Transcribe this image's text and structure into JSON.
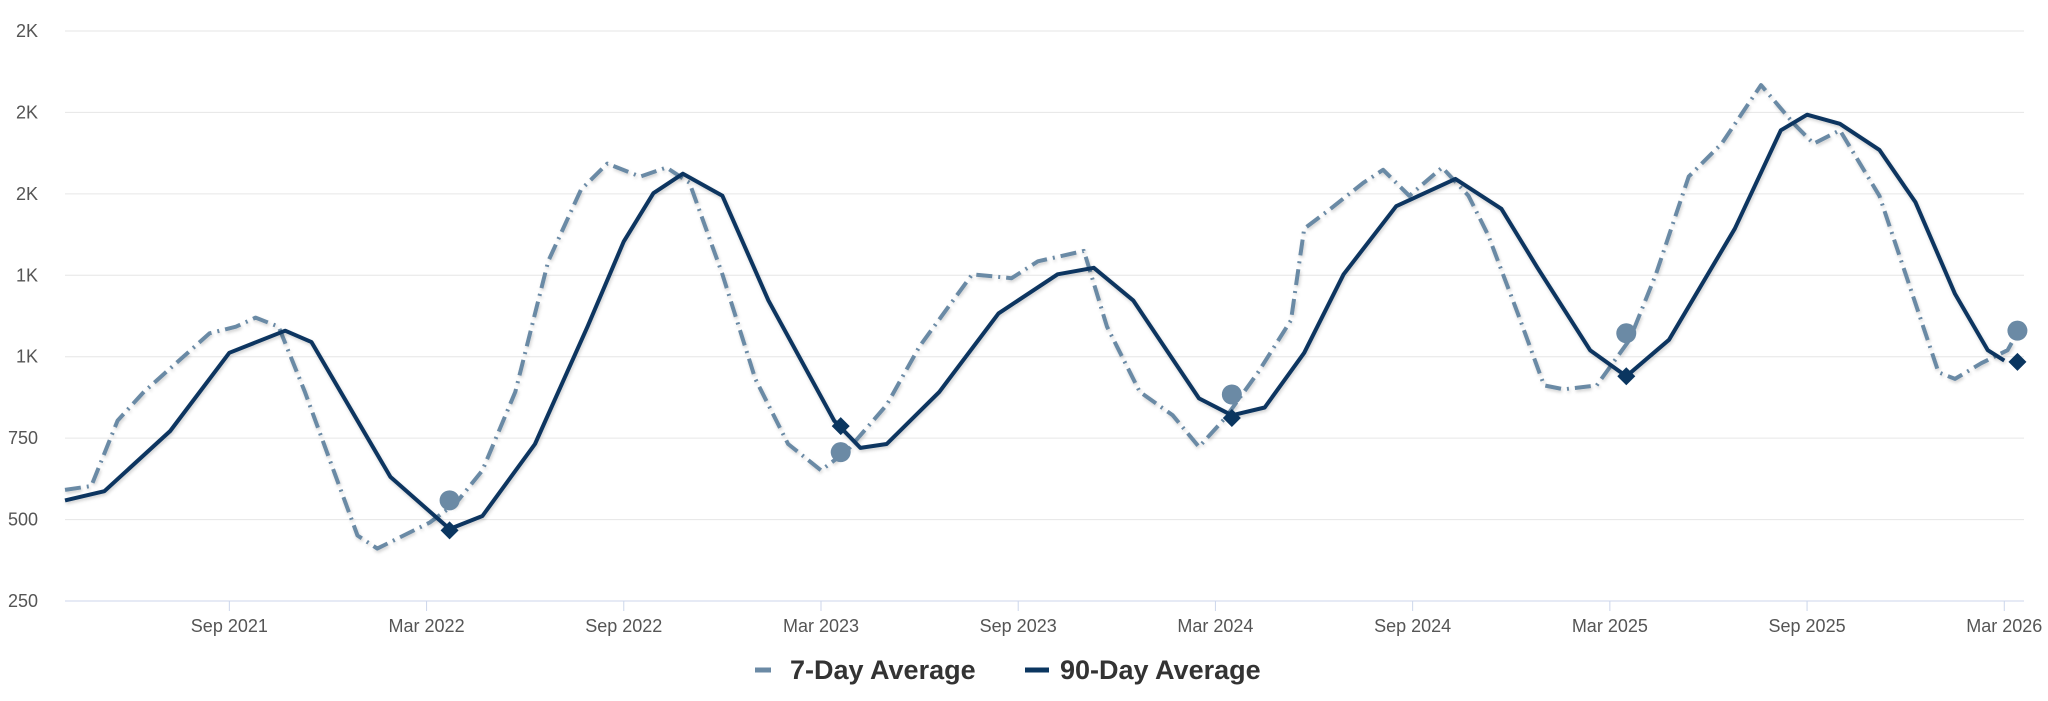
{
  "chart_data": {
    "type": "line",
    "title": "",
    "xlabel": "",
    "ylabel": "",
    "x_unit": "months since Apr 2021",
    "xlim": [
      0,
      59.6
    ],
    "ylim": [
      250,
      2000
    ],
    "grid": true,
    "legend_placement": "bottom-center",
    "y_ticks": [
      {
        "value": 250,
        "label": "250"
      },
      {
        "value": 500,
        "label": "500"
      },
      {
        "value": 750,
        "label": "750"
      },
      {
        "value": 1000,
        "label": "1K"
      },
      {
        "value": 1250,
        "label": "1K"
      },
      {
        "value": 1500,
        "label": "2K"
      },
      {
        "value": 1750,
        "label": "2K"
      },
      {
        "value": 2000,
        "label": "2K"
      }
    ],
    "x_ticks": [
      {
        "value": 5,
        "label": "Sep 2021"
      },
      {
        "value": 11,
        "label": "Mar 2022"
      },
      {
        "value": 17,
        "label": "Sep 2022"
      },
      {
        "value": 23,
        "label": "Mar 2023"
      },
      {
        "value": 29,
        "label": "Sep 2023"
      },
      {
        "value": 35,
        "label": "Mar 2024"
      },
      {
        "value": 41,
        "label": "Sep 2024"
      },
      {
        "value": 47,
        "label": "Mar 2025"
      },
      {
        "value": 53,
        "label": "Sep 2025"
      },
      {
        "value": 59,
        "label": "Mar 2026"
      }
    ],
    "series": [
      {
        "name": "7-Day Average",
        "color": "#6b8aa5",
        "style": "dash-dot",
        "points": [
          [
            0,
            591
          ],
          [
            0.8,
            603
          ],
          [
            1.6,
            804
          ],
          [
            2.4,
            892
          ],
          [
            3.2,
            964
          ],
          [
            4.4,
            1072
          ],
          [
            5.2,
            1092
          ],
          [
            5.8,
            1120
          ],
          [
            6.5,
            1092
          ],
          [
            7.3,
            892
          ],
          [
            8.1,
            671
          ],
          [
            8.9,
            451
          ],
          [
            9.5,
            411
          ],
          [
            10.3,
            451
          ],
          [
            11.1,
            491
          ],
          [
            11.9,
            551
          ],
          [
            12.7,
            651
          ],
          [
            13.7,
            892
          ],
          [
            14.7,
            1293
          ],
          [
            15.7,
            1513
          ],
          [
            16.5,
            1593
          ],
          [
            17.5,
            1553
          ],
          [
            18.3,
            1581
          ],
          [
            19,
            1534
          ],
          [
            20,
            1253
          ],
          [
            21,
            932
          ],
          [
            22,
            732
          ],
          [
            23,
            651
          ],
          [
            23.8,
            712
          ],
          [
            25,
            852
          ],
          [
            26,
            1032
          ],
          [
            27.6,
            1253
          ],
          [
            28.8,
            1241
          ],
          [
            29.6,
            1293
          ],
          [
            31,
            1325
          ],
          [
            31.7,
            1092
          ],
          [
            32.7,
            892
          ],
          [
            33.7,
            820
          ],
          [
            34.5,
            723
          ],
          [
            35.3,
            812
          ],
          [
            36.3,
            952
          ],
          [
            37.3,
            1112
          ],
          [
            37.7,
            1393
          ],
          [
            38.5,
            1454
          ],
          [
            39.5,
            1534
          ],
          [
            40.1,
            1574
          ],
          [
            40.9,
            1494
          ],
          [
            41.9,
            1581
          ],
          [
            42.7,
            1494
          ],
          [
            43.3,
            1373
          ],
          [
            44.2,
            1133
          ],
          [
            45,
            912
          ],
          [
            45.6,
            900
          ],
          [
            46.6,
            912
          ],
          [
            47.6,
            1052
          ],
          [
            48.4,
            1253
          ],
          [
            49.4,
            1553
          ],
          [
            50.4,
            1654
          ],
          [
            51.6,
            1834
          ],
          [
            52.6,
            1715
          ],
          [
            53.2,
            1654
          ],
          [
            54,
            1695
          ],
          [
            55.2,
            1494
          ],
          [
            56,
            1253
          ],
          [
            57,
            952
          ],
          [
            57.5,
            932
          ],
          [
            58.3,
            980
          ],
          [
            59.1,
            1020
          ],
          [
            59.5,
            1092
          ]
        ],
        "markers": [
          [
            11.7,
            559
          ],
          [
            23.6,
            707
          ],
          [
            35.5,
            884
          ],
          [
            47.5,
            1072
          ],
          [
            59.4,
            1080
          ]
        ],
        "marker_shape": "circle"
      },
      {
        "name": "90-Day Average",
        "color": "#0b3660",
        "style": "solid",
        "points": [
          [
            0,
            559
          ],
          [
            1.2,
            587
          ],
          [
            3.2,
            772
          ],
          [
            5,
            1012
          ],
          [
            6.7,
            1080
          ],
          [
            7.5,
            1045
          ],
          [
            9.9,
            631
          ],
          [
            11.7,
            471
          ],
          [
            12.7,
            511
          ],
          [
            14.3,
            732
          ],
          [
            15.9,
            1093
          ],
          [
            17,
            1354
          ],
          [
            17.9,
            1502
          ],
          [
            18.8,
            1562
          ],
          [
            20,
            1494
          ],
          [
            21.4,
            1173
          ],
          [
            23.4,
            804
          ],
          [
            24.2,
            720
          ],
          [
            25,
            732
          ],
          [
            26.6,
            892
          ],
          [
            28.4,
            1133
          ],
          [
            30.2,
            1253
          ],
          [
            31.3,
            1273
          ],
          [
            32.5,
            1173
          ],
          [
            34.5,
            872
          ],
          [
            35.5,
            820
          ],
          [
            36.5,
            844
          ],
          [
            37.7,
            1012
          ],
          [
            38.9,
            1253
          ],
          [
            40.5,
            1462
          ],
          [
            42.3,
            1546
          ],
          [
            43.7,
            1454
          ],
          [
            44.8,
            1273
          ],
          [
            46.4,
            1020
          ],
          [
            47.5,
            940
          ],
          [
            48.8,
            1052
          ],
          [
            50.8,
            1393
          ],
          [
            52.2,
            1695
          ],
          [
            53,
            1743
          ],
          [
            54,
            1715
          ],
          [
            55.2,
            1635
          ],
          [
            56.3,
            1474
          ],
          [
            57.5,
            1193
          ],
          [
            58.5,
            1020
          ],
          [
            59,
            988
          ]
        ],
        "markers": [
          [
            11.7,
            467
          ],
          [
            23.6,
            787
          ],
          [
            35.5,
            812
          ],
          [
            47.5,
            940
          ],
          [
            59.4,
            984
          ]
        ],
        "marker_shape": "diamond"
      }
    ]
  }
}
